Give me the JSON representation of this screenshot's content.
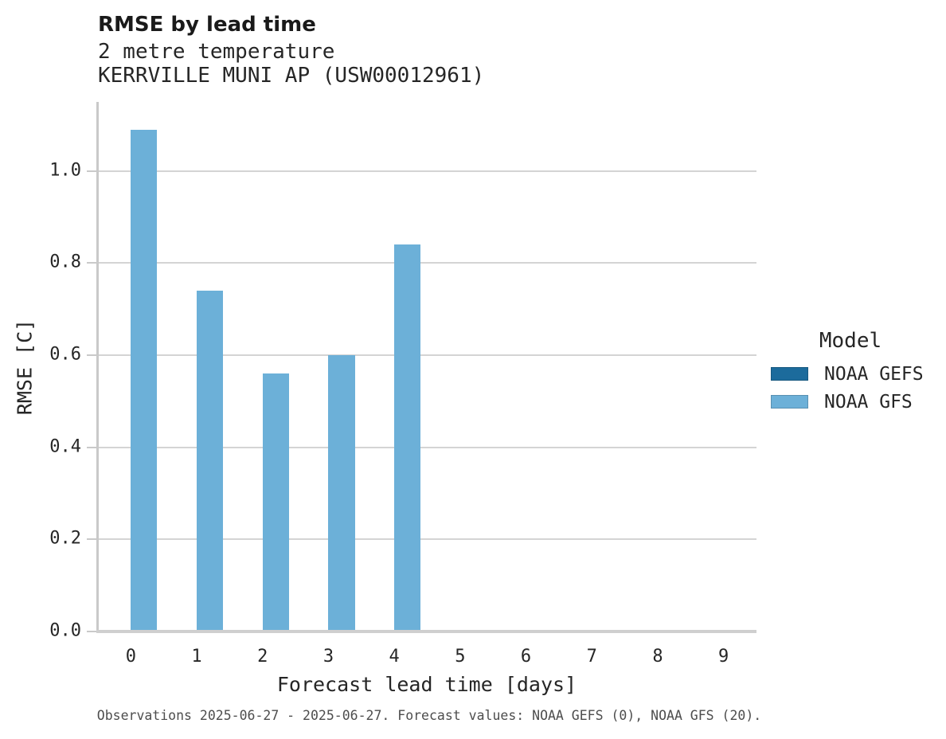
{
  "header": {
    "title": "RMSE by lead time"
  },
  "chart_data": {
    "type": "bar",
    "title": "RMSE by lead time",
    "subtitle_lines": [
      "2 metre temperature",
      "KERRVILLE MUNI AP (USW00012961)"
    ],
    "categories": [
      "0",
      "1",
      "2",
      "3",
      "4",
      "5",
      "6",
      "7",
      "8",
      "9"
    ],
    "series": [
      {
        "name": "NOAA GEFS",
        "color": "#1c6b9c",
        "values": [
          null,
          null,
          null,
          null,
          null,
          null,
          null,
          null,
          null,
          null
        ]
      },
      {
        "name": "NOAA GFS",
        "color": "#6cb0d8",
        "values": [
          1.09,
          0.74,
          0.56,
          0.6,
          0.84,
          null,
          null,
          null,
          null,
          null
        ]
      }
    ],
    "xlabel": "Forecast lead time [days]",
    "ylabel": "RMSE [C]",
    "yticks": [
      "0.0",
      "0.2",
      "0.4",
      "0.6",
      "0.8",
      "1.0"
    ],
    "ylim": [
      0,
      1.15
    ],
    "grid": "horizontal",
    "legend": {
      "title": "Model",
      "position": "right"
    }
  },
  "footer": {
    "note": "Observations 2025-06-27 - 2025-06-27. Forecast values: NOAA GEFS (0), NOAA GFS (20)."
  },
  "colors": {
    "bar_gefs": "#1c6b9c",
    "bar_gfs": "#6cb0d8",
    "gridline": "#d4d4d4",
    "axis": "#c9c9c9",
    "text": "#262626",
    "footer_text": "#4d4d4d",
    "background": "#ffffff"
  }
}
